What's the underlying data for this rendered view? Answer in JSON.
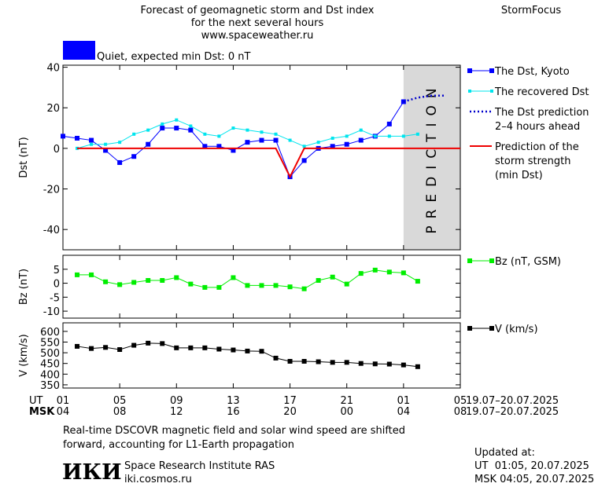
{
  "header": {
    "title_lines": [
      "Forecast of geomagnetic storm and Dst index",
      "for the next several hours",
      "www.spaceweather.ru"
    ],
    "brand": "StormFocus"
  },
  "status": {
    "text": "Quiet, expected min Dst: 0 nT",
    "color": "#0000ff"
  },
  "prediction_label": "PREDICTION",
  "chart_data": [
    {
      "type": "line",
      "ylabel": "Dst (nT)",
      "xlim": [
        0,
        28
      ],
      "ylim": [
        -50,
        41
      ],
      "yticks": [
        -40,
        -20,
        0,
        20,
        40
      ],
      "series": [
        {
          "name": "The Dst, Kyoto",
          "color": "#0000ff",
          "style": "markers",
          "x": [
            0,
            1,
            2,
            3,
            4,
            5,
            6,
            7,
            8,
            9,
            10,
            11,
            12,
            13,
            14,
            15,
            16,
            17,
            18,
            19,
            20,
            21,
            22,
            23,
            24
          ],
          "values": [
            6,
            5,
            4,
            -1,
            -7,
            -4,
            2,
            10,
            10,
            9,
            1,
            1,
            -1,
            3,
            4,
            4,
            -14,
            -6,
            0,
            1,
            2,
            4,
            6,
            12,
            23
          ]
        },
        {
          "name": "The recovered Dst",
          "color": "#00e5ee",
          "style": "small-markers",
          "x": [
            1,
            2,
            3,
            4,
            5,
            6,
            7,
            8,
            9,
            10,
            11,
            12,
            13,
            14,
            15,
            16,
            17,
            18,
            19,
            20,
            21,
            22,
            23,
            24,
            25
          ],
          "values": [
            0,
            2,
            2,
            3,
            7,
            9,
            12,
            14,
            11,
            7,
            6,
            10,
            9,
            8,
            7,
            4,
            1,
            3,
            5,
            6,
            9,
            6,
            6,
            6,
            7
          ]
        },
        {
          "name": "The Dst prediction 2–4 hours ahead",
          "color": "#0000cc",
          "style": "dotted",
          "x": [
            24,
            25,
            26,
            27
          ],
          "values": [
            23,
            25,
            26,
            26
          ]
        },
        {
          "name": "Prediction of the storm strength (min Dst)",
          "color": "#ee0000",
          "style": "solid",
          "x": [
            1,
            15,
            16,
            17,
            28
          ],
          "values": [
            0,
            0,
            -14,
            0,
            0
          ]
        }
      ]
    },
    {
      "type": "line",
      "ylabel": "Bz (nT)",
      "xlim": [
        0,
        28
      ],
      "ylim": [
        -12.5,
        10
      ],
      "yticks": [
        -10,
        -5,
        0,
        5
      ],
      "series": [
        {
          "name": "Bz (nT, GSM)",
          "color": "#00ee00",
          "style": "markers",
          "x": [
            1,
            2,
            3,
            4,
            5,
            6,
            7,
            8,
            9,
            10,
            11,
            12,
            13,
            14,
            15,
            16,
            17,
            18,
            19,
            20,
            21,
            22,
            23,
            24,
            25
          ],
          "values": [
            3,
            3,
            0.5,
            -0.5,
            0.3,
            1,
            1,
            2,
            -0.3,
            -1.5,
            -1.5,
            2,
            -0.8,
            -0.8,
            -0.8,
            -1.3,
            -2,
            1,
            2.2,
            -0.3,
            3.5,
            4.7,
            4,
            3.7,
            0.7
          ]
        }
      ]
    },
    {
      "type": "line",
      "ylabel": "V (km/s)",
      "xlim": [
        0,
        28
      ],
      "ylim": [
        335,
        640
      ],
      "yticks": [
        350,
        400,
        450,
        500,
        550,
        600
      ],
      "xticks": [
        {
          "value": 0,
          "label": "01"
        },
        {
          "value": 4,
          "label": "05"
        },
        {
          "value": 8,
          "label": "09"
        },
        {
          "value": 12,
          "label": "13"
        },
        {
          "value": 16,
          "label": "17"
        },
        {
          "value": 20,
          "label": "21"
        },
        {
          "value": 24,
          "label": "01"
        },
        {
          "value": 28,
          "label": "05"
        }
      ],
      "xticks_msk": [
        {
          "value": 0,
          "label": "04"
        },
        {
          "value": 4,
          "label": "08"
        },
        {
          "value": 8,
          "label": "12"
        },
        {
          "value": 12,
          "label": "16"
        },
        {
          "value": 16,
          "label": "20"
        },
        {
          "value": 20,
          "label": "00"
        },
        {
          "value": 24,
          "label": "04"
        },
        {
          "value": 28,
          "label": "08"
        }
      ],
      "ut_label": "UT",
      "msk_label": "MSK",
      "ut_dates": "19.07–20.07.2025",
      "msk_dates": "19.07–20.07.2025",
      "series": [
        {
          "name": "V (km/s)",
          "color": "#000000",
          "style": "markers",
          "x": [
            1,
            2,
            3,
            4,
            5,
            6,
            7,
            8,
            9,
            10,
            11,
            12,
            13,
            14,
            15,
            16,
            17,
            18,
            19,
            20,
            21,
            22,
            23,
            24,
            25
          ],
          "values": [
            530,
            520,
            525,
            515,
            535,
            545,
            543,
            523,
            523,
            523,
            517,
            513,
            508,
            507,
            475,
            460,
            460,
            458,
            455,
            455,
            450,
            448,
            447,
            443,
            435
          ]
        }
      ]
    }
  ],
  "footer": {
    "note_lines": [
      "Real-time DSCOVR magnetic field and solar wind speed are shifted",
      "forward, accounting for L1-Earth propagation"
    ],
    "logo": "ИКИ",
    "institute": "Space Research Institute RAS",
    "site": "iki.cosmos.ru",
    "updated_lines": [
      "Updated at:",
      "UT  01:05, 20.07.2025",
      "MSK 04:05, 20.07.2025"
    ]
  }
}
